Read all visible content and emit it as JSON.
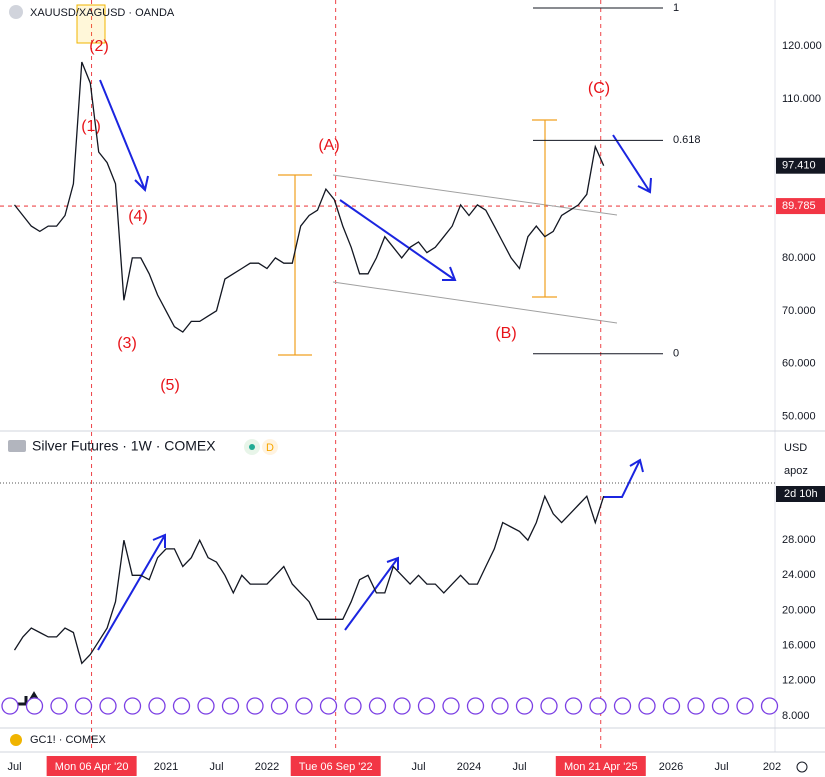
{
  "chart_data": [
    {
      "type": "line",
      "title": "XAUUSD/XAGUSD · OANDA",
      "color": "#131722",
      "x": [
        "2019-07",
        "2019-08",
        "2019-09",
        "2019-10",
        "2019-11",
        "2019-12",
        "2020-01",
        "2020-02",
        "2020-03",
        "2020-04",
        "2020-05",
        "2020-06",
        "2020-07",
        "2020-08",
        "2020-09",
        "2020-10",
        "2020-11",
        "2020-12",
        "2021-01",
        "2021-02",
        "2021-03",
        "2021-04",
        "2021-05",
        "2021-06",
        "2021-07",
        "2021-08",
        "2021-09",
        "2021-10",
        "2021-11",
        "2021-12",
        "2022-01",
        "2022-02",
        "2022-03",
        "2022-04",
        "2022-05",
        "2022-06",
        "2022-07",
        "2022-08",
        "2022-09",
        "2022-10",
        "2022-11",
        "2022-12",
        "2023-01",
        "2023-02",
        "2023-03",
        "2023-04",
        "2023-05",
        "2023-06",
        "2023-07",
        "2023-08",
        "2023-09",
        "2023-10",
        "2023-11",
        "2023-12",
        "2024-01",
        "2024-02",
        "2024-03",
        "2024-04",
        "2024-05",
        "2024-06",
        "2024-07",
        "2024-08",
        "2024-09",
        "2024-10",
        "2024-11",
        "2024-12",
        "2025-01",
        "2025-02",
        "2025-03",
        "2025-04",
        "2025-05"
      ],
      "values": [
        90,
        88,
        86,
        85,
        86,
        86,
        88,
        94,
        117,
        113,
        100,
        98,
        94,
        72,
        80,
        80,
        77,
        73,
        70,
        67,
        66,
        68,
        68,
        69,
        70,
        76,
        77,
        78,
        79,
        79,
        78,
        80,
        79,
        79,
        86,
        88,
        89,
        93,
        91,
        86,
        82,
        77,
        77,
        80,
        84,
        82,
        80,
        82,
        83,
        81,
        82,
        84,
        86,
        90,
        88,
        90,
        89,
        86,
        83,
        80,
        78,
        84,
        86,
        84,
        85,
        88,
        89,
        90,
        92,
        101,
        97.41
      ],
      "ylim": [
        47.5,
        128.7
      ],
      "yticks": [
        {
          "value": 50,
          "label": "50.000"
        },
        {
          "value": 60,
          "label": "60.000"
        },
        {
          "value": 70,
          "label": "70.000"
        },
        {
          "value": 80,
          "label": "80.000"
        },
        {
          "value": 90,
          "label": "90.000"
        },
        {
          "value": 110,
          "label": "110.000"
        },
        {
          "value": 120,
          "label": "120.000"
        }
      ],
      "price_labels": [
        {
          "value": 97.41,
          "label": "97.410"
        },
        {
          "value": 89.785,
          "label": "89.785"
        }
      ],
      "fib_levels": [
        {
          "ratio": 1,
          "price": 127.2
        },
        {
          "ratio": 0.618,
          "price": 102.2
        },
        {
          "ratio": 0,
          "price": 61.9
        }
      ],
      "annotations": [
        "(2)",
        "(1)",
        "(4)",
        "(3)",
        "(5)",
        "(A)",
        "(B)",
        "(C)"
      ]
    },
    {
      "type": "line",
      "title": "Silver Futures · 1W · COMEX",
      "badge": "D",
      "color": "#131722",
      "x": [
        "2019-07",
        "2019-08",
        "2019-09",
        "2019-10",
        "2019-11",
        "2019-12",
        "2020-01",
        "2020-02",
        "2020-03",
        "2020-04",
        "2020-05",
        "2020-06",
        "2020-07",
        "2020-08",
        "2020-09",
        "2020-10",
        "2020-11",
        "2020-12",
        "2021-01",
        "2021-02",
        "2021-03",
        "2021-04",
        "2021-05",
        "2021-06",
        "2021-07",
        "2021-08",
        "2021-09",
        "2021-10",
        "2021-11",
        "2021-12",
        "2022-01",
        "2022-02",
        "2022-03",
        "2022-04",
        "2022-05",
        "2022-06",
        "2022-07",
        "2022-08",
        "2022-09",
        "2022-10",
        "2022-11",
        "2022-12",
        "2023-01",
        "2023-02",
        "2023-03",
        "2023-04",
        "2023-05",
        "2023-06",
        "2023-07",
        "2023-08",
        "2023-09",
        "2023-10",
        "2023-11",
        "2023-12",
        "2024-01",
        "2024-02",
        "2024-03",
        "2024-04",
        "2024-05",
        "2024-06",
        "2024-07",
        "2024-08",
        "2024-09",
        "2024-10",
        "2024-11",
        "2024-12",
        "2025-01",
        "2025-02",
        "2025-03",
        "2025-04",
        "2025-05"
      ],
      "values": [
        15.5,
        17,
        18,
        17.5,
        17,
        17,
        18,
        17.5,
        14,
        15,
        16.5,
        18,
        21,
        28,
        24,
        24,
        23.5,
        26,
        27,
        27,
        25,
        26,
        28,
        26,
        25.5,
        24,
        22,
        24,
        23,
        23,
        23,
        24,
        25,
        23,
        22,
        21,
        19,
        19,
        19,
        19,
        21,
        23.5,
        24,
        22,
        22,
        25,
        24,
        23,
        24,
        23,
        23,
        22,
        23,
        24,
        23,
        23,
        25,
        27,
        30,
        29.5,
        29,
        28,
        30,
        33,
        31,
        30,
        31,
        32,
        33,
        30,
        33
      ],
      "ylim": [
        6.75,
        40.3
      ],
      "yticks": [
        {
          "value": 8,
          "label": "8.000"
        },
        {
          "value": 12,
          "label": "12.000"
        },
        {
          "value": 16,
          "label": "16.000"
        },
        {
          "value": 20,
          "label": "20.000"
        },
        {
          "value": 24,
          "label": "24.000"
        },
        {
          "value": 28,
          "label": "28.000"
        }
      ],
      "currency": "USD",
      "scale_menu": "apoz",
      "countdown": "2d 10h"
    }
  ],
  "footer": {
    "symbol": "GC1! · COMEX"
  },
  "xticks": [
    {
      "value": "2019-07",
      "label": "Jul"
    },
    {
      "value": "2021-01",
      "label": "2021"
    },
    {
      "value": "2021-07",
      "label": "Jul"
    },
    {
      "value": "2022-01",
      "label": "2022"
    },
    {
      "value": "2023-07",
      "label": "Jul"
    },
    {
      "value": "2024-01",
      "label": "2024"
    },
    {
      "value": "2024-07",
      "label": "Jul"
    },
    {
      "value": "2026-01",
      "label": "2026"
    },
    {
      "value": "2026-07",
      "label": "Jul"
    },
    {
      "value": "2027-01",
      "label": "202"
    }
  ],
  "date_markers": [
    {
      "value": "2020-04-06",
      "label": "Mon 06 Apr '20"
    },
    {
      "value": "2022-09-06",
      "label": "Tue 06 Sep '22"
    },
    {
      "value": "2025-04-21",
      "label": "Mon 21 Apr '25"
    }
  ]
}
